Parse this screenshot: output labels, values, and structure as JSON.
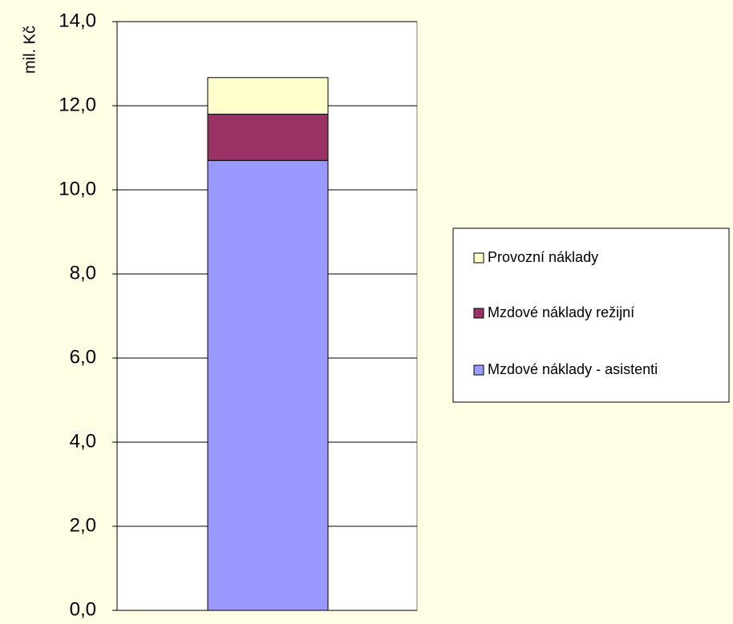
{
  "chart_data": {
    "type": "bar",
    "stacked": true,
    "categories": [
      ""
    ],
    "ylabel": "mil. Kč",
    "ylim": [
      0,
      14
    ],
    "yticks": [
      0,
      2,
      4,
      6,
      8,
      10,
      12,
      14
    ],
    "ytick_labels": [
      "0,0",
      "2,0",
      "4,0",
      "6,0",
      "8,0",
      "10,0",
      "12,0",
      "14,0"
    ],
    "grid": true,
    "legend_position": "right",
    "series": [
      {
        "name": "Mzdové náklady - asistenti",
        "values": [
          10.7
        ],
        "color": "#9999ff"
      },
      {
        "name": "Mzdové náklady režijní",
        "values": [
          1.1
        ],
        "color": "#993366"
      },
      {
        "name": "Provozní náklady",
        "values": [
          0.87
        ],
        "color": "#ffffcc"
      }
    ],
    "legend_order": [
      "Provozní náklady",
      "Mzdové náklady režijní",
      "Mzdové náklady - asistenti"
    ]
  },
  "colors": {
    "background": "#fffde3",
    "plot_area": "#ffffff",
    "gridline": "#000000"
  }
}
